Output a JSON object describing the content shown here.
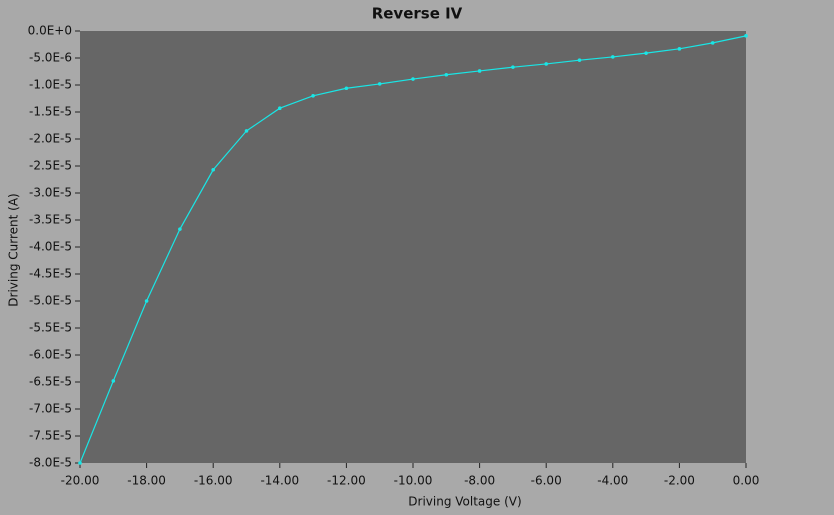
{
  "chart_data": {
    "type": "line",
    "title": "Reverse IV",
    "x_label": "Driving Voltage (V)",
    "y_label": "Driving Current (A)",
    "x": [
      -20,
      -19,
      -18,
      -17,
      -16,
      -15,
      -14,
      -13,
      -12,
      -11,
      -10,
      -9,
      -8,
      -7,
      -6,
      -5,
      -4,
      -3,
      -2,
      -1,
      0
    ],
    "series": [
      {
        "color": "#19e6e6",
        "values": [
          -8e-05,
          -6.48e-05,
          -5e-05,
          -3.67e-05,
          -2.57e-05,
          -1.85e-05,
          -1.43e-05,
          -1.2e-05,
          -1.06e-05,
          -9.8e-06,
          -8.9e-06,
          -8.1e-06,
          -7.4e-06,
          -6.7e-06,
          -6.1e-06,
          -5.4e-06,
          -4.8e-06,
          -4.1e-06,
          -3.3e-06,
          -2.2e-06,
          -9e-07
        ]
      }
    ],
    "xlim": [
      -20,
      0
    ],
    "xticks": [
      {
        "value": -20,
        "label": "-20.00"
      },
      {
        "value": -18,
        "label": "-18.00"
      },
      {
        "value": -16,
        "label": "-16.00"
      },
      {
        "value": -14,
        "label": "-14.00"
      },
      {
        "value": -12,
        "label": "-12.00"
      },
      {
        "value": -10,
        "label": "-10.00"
      },
      {
        "value": -8,
        "label": "-8.00"
      },
      {
        "value": -6,
        "label": "-6.00"
      },
      {
        "value": -4,
        "label": "-4.00"
      },
      {
        "value": -2,
        "label": "-2.00"
      },
      {
        "value": 0,
        "label": "0.00"
      }
    ],
    "ylim": [
      -8e-05,
      0
    ],
    "yticks": [
      {
        "value": 0,
        "label": "0.0E+0"
      },
      {
        "value": -5e-06,
        "label": "-5.0E-6"
      },
      {
        "value": -1e-05,
        "label": "-1.0E-5"
      },
      {
        "value": -1.5e-05,
        "label": "-1.5E-5"
      },
      {
        "value": -2e-05,
        "label": "-2.0E-5"
      },
      {
        "value": -2.5e-05,
        "label": "-2.5E-5"
      },
      {
        "value": -3e-05,
        "label": "-3.0E-5"
      },
      {
        "value": -3.5e-05,
        "label": "-3.5E-5"
      },
      {
        "value": -4e-05,
        "label": "-4.0E-5"
      },
      {
        "value": -4.5e-05,
        "label": "-4.5E-5"
      },
      {
        "value": -5e-05,
        "label": "-5.0E-5"
      },
      {
        "value": -5.5e-05,
        "label": "-5.5E-5"
      },
      {
        "value": -6e-05,
        "label": "-6.0E-5"
      },
      {
        "value": -6.5e-05,
        "label": "-6.5E-5"
      },
      {
        "value": -7e-05,
        "label": "-7.0E-5"
      },
      {
        "value": -7.5e-05,
        "label": "-7.5E-5"
      },
      {
        "value": -8e-05,
        "label": "-8.0E-5"
      }
    ],
    "plot_background": "#666666",
    "grid": false
  }
}
